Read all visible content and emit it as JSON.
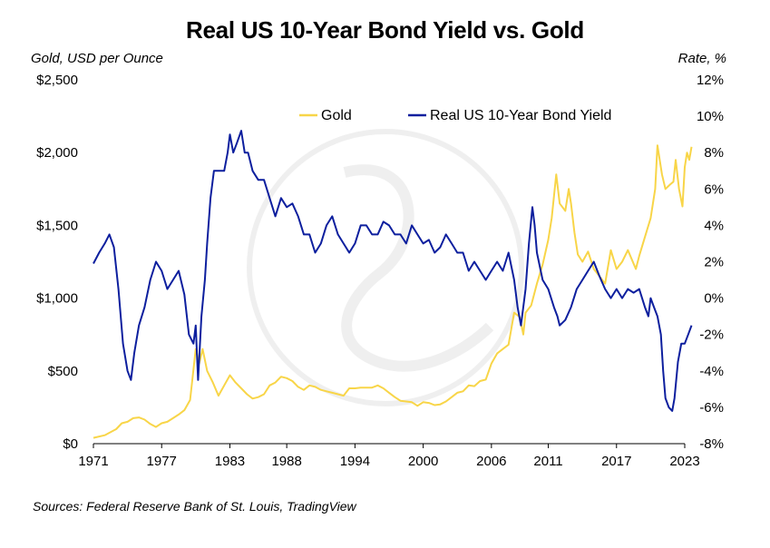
{
  "chart_data": {
    "type": "line",
    "title": "Real US 10-Year Bond Yield vs. Gold",
    "ylabel_left": "Gold, USD per Ounce",
    "ylabel_right": "Rate, %",
    "source": "Sources: Federal Reserve Bank of St. Louis, TradingView",
    "x_ticks": [
      {
        "label": "1971",
        "year": 1971
      },
      {
        "label": "1977",
        "year": 1977
      },
      {
        "label": "1983",
        "year": 1983
      },
      {
        "label": "1988",
        "year": 1988
      },
      {
        "label": "1994",
        "year": 1994
      },
      {
        "label": "2000",
        "year": 2000
      },
      {
        "label": "2006",
        "year": 2006
      },
      {
        "label": "2011",
        "year": 2011
      },
      {
        "label": "2017",
        "year": 2017
      },
      {
        "label": "2023",
        "year": 2023
      }
    ],
    "xlim": [
      1971,
      2023
    ],
    "ylim_left": [
      0,
      2500
    ],
    "ylim_right": [
      -8,
      12
    ],
    "y_left_ticks": [
      {
        "label": "$0",
        "value": 0
      },
      {
        "label": "$500",
        "value": 500
      },
      {
        "label": "$1,000",
        "value": 1000
      },
      {
        "label": "$1,500",
        "value": 1500
      },
      {
        "label": "$2,000",
        "value": 2000
      },
      {
        "label": "$2,500",
        "value": 2500
      }
    ],
    "y_right_ticks": [
      {
        "label": "-8%",
        "value": -8
      },
      {
        "label": "-6%",
        "value": -6
      },
      {
        "label": "-4%",
        "value": -4
      },
      {
        "label": "-2%",
        "value": -2
      },
      {
        "label": "0%",
        "value": 0
      },
      {
        "label": "2%",
        "value": 2
      },
      {
        "label": "4%",
        "value": 4
      },
      {
        "label": "6%",
        "value": 6
      },
      {
        "label": "8%",
        "value": 8
      },
      {
        "label": "10%",
        "value": 10
      },
      {
        "label": "12%",
        "value": 12
      }
    ],
    "legend_position": "top-right",
    "grid": false,
    "series": [
      {
        "name": "Gold",
        "axis": "left",
        "color": "#F8D548",
        "points": [
          [
            1971.0,
            40
          ],
          [
            1972.0,
            58
          ],
          [
            1973.0,
            100
          ],
          [
            1973.5,
            140
          ],
          [
            1974.0,
            150
          ],
          [
            1974.5,
            175
          ],
          [
            1975.0,
            180
          ],
          [
            1975.5,
            165
          ],
          [
            1976.0,
            135
          ],
          [
            1976.5,
            115
          ],
          [
            1977.0,
            140
          ],
          [
            1977.5,
            150
          ],
          [
            1978.0,
            175
          ],
          [
            1978.5,
            200
          ],
          [
            1979.0,
            230
          ],
          [
            1979.5,
            300
          ],
          [
            1980.0,
            650
          ],
          [
            1980.3,
            550
          ],
          [
            1980.6,
            650
          ],
          [
            1981.0,
            500
          ],
          [
            1981.5,
            420
          ],
          [
            1982.0,
            330
          ],
          [
            1982.5,
            400
          ],
          [
            1983.0,
            470
          ],
          [
            1983.5,
            420
          ],
          [
            1984.0,
            380
          ],
          [
            1984.5,
            340
          ],
          [
            1985.0,
            310
          ],
          [
            1985.5,
            320
          ],
          [
            1986.0,
            340
          ],
          [
            1986.5,
            400
          ],
          [
            1987.0,
            420
          ],
          [
            1987.5,
            460
          ],
          [
            1988.0,
            450
          ],
          [
            1988.5,
            430
          ],
          [
            1989.0,
            390
          ],
          [
            1989.5,
            370
          ],
          [
            1990.0,
            400
          ],
          [
            1990.5,
            390
          ],
          [
            1991.0,
            370
          ],
          [
            1991.5,
            360
          ],
          [
            1992.0,
            350
          ],
          [
            1992.5,
            340
          ],
          [
            1993.0,
            330
          ],
          [
            1993.5,
            380
          ],
          [
            1994.0,
            380
          ],
          [
            1994.5,
            385
          ],
          [
            1995.0,
            385
          ],
          [
            1995.5,
            385
          ],
          [
            1996.0,
            400
          ],
          [
            1996.5,
            380
          ],
          [
            1997.0,
            350
          ],
          [
            1997.5,
            320
          ],
          [
            1998.0,
            295
          ],
          [
            1998.5,
            290
          ],
          [
            1999.0,
            285
          ],
          [
            1999.5,
            260
          ],
          [
            2000.0,
            285
          ],
          [
            2000.5,
            280
          ],
          [
            2001.0,
            265
          ],
          [
            2001.5,
            270
          ],
          [
            2002.0,
            290
          ],
          [
            2002.5,
            320
          ],
          [
            2003.0,
            350
          ],
          [
            2003.5,
            360
          ],
          [
            2004.0,
            400
          ],
          [
            2004.5,
            395
          ],
          [
            2005.0,
            430
          ],
          [
            2005.5,
            440
          ],
          [
            2006.0,
            550
          ],
          [
            2006.5,
            620
          ],
          [
            2007.0,
            650
          ],
          [
            2007.5,
            680
          ],
          [
            2008.0,
            900
          ],
          [
            2008.5,
            870
          ],
          [
            2008.8,
            750
          ],
          [
            2009.0,
            900
          ],
          [
            2009.5,
            950
          ],
          [
            2010.0,
            1100
          ],
          [
            2010.5,
            1230
          ],
          [
            2011.0,
            1400
          ],
          [
            2011.3,
            1550
          ],
          [
            2011.7,
            1850
          ],
          [
            2012.0,
            1650
          ],
          [
            2012.5,
            1600
          ],
          [
            2012.8,
            1750
          ],
          [
            2013.0,
            1650
          ],
          [
            2013.3,
            1450
          ],
          [
            2013.6,
            1300
          ],
          [
            2014.0,
            1250
          ],
          [
            2014.5,
            1320
          ],
          [
            2015.0,
            1200
          ],
          [
            2015.5,
            1150
          ],
          [
            2016.0,
            1100
          ],
          [
            2016.5,
            1330
          ],
          [
            2017.0,
            1200
          ],
          [
            2017.5,
            1250
          ],
          [
            2018.0,
            1330
          ],
          [
            2018.7,
            1200
          ],
          [
            2019.0,
            1290
          ],
          [
            2019.5,
            1420
          ],
          [
            2020.0,
            1550
          ],
          [
            2020.4,
            1750
          ],
          [
            2020.6,
            2050
          ],
          [
            2021.0,
            1850
          ],
          [
            2021.3,
            1750
          ],
          [
            2021.7,
            1780
          ],
          [
            2022.0,
            1800
          ],
          [
            2022.2,
            1950
          ],
          [
            2022.5,
            1750
          ],
          [
            2022.8,
            1630
          ],
          [
            2023.0,
            1900
          ],
          [
            2023.2,
            2000
          ],
          [
            2023.4,
            1950
          ],
          [
            2023.6,
            2040
          ]
        ]
      },
      {
        "name": "Real US 10-Year Bond Yield",
        "axis": "right",
        "color": "#0D1F9E",
        "points": [
          [
            1971.0,
            1.9
          ],
          [
            1971.5,
            2.5
          ],
          [
            1972.0,
            3.0
          ],
          [
            1972.4,
            3.5
          ],
          [
            1972.8,
            2.8
          ],
          [
            1973.2,
            0.5
          ],
          [
            1973.6,
            -2.5
          ],
          [
            1974.0,
            -4.0
          ],
          [
            1974.3,
            -4.5
          ],
          [
            1974.6,
            -3.0
          ],
          [
            1975.0,
            -1.5
          ],
          [
            1975.5,
            -0.5
          ],
          [
            1976.0,
            1.0
          ],
          [
            1976.5,
            2.0
          ],
          [
            1977.0,
            1.5
          ],
          [
            1977.5,
            0.5
          ],
          [
            1978.0,
            1.0
          ],
          [
            1978.5,
            1.5
          ],
          [
            1979.0,
            0.2
          ],
          [
            1979.4,
            -2.0
          ],
          [
            1979.8,
            -2.5
          ],
          [
            1980.0,
            -1.5
          ],
          [
            1980.2,
            -4.5
          ],
          [
            1980.5,
            -1.0
          ],
          [
            1980.8,
            1.0
          ],
          [
            1981.0,
            3.0
          ],
          [
            1981.3,
            5.5
          ],
          [
            1981.6,
            7.0
          ],
          [
            1982.0,
            7.0
          ],
          [
            1982.5,
            7.0
          ],
          [
            1982.8,
            8.0
          ],
          [
            1983.0,
            9.0
          ],
          [
            1983.3,
            8.0
          ],
          [
            1983.6,
            8.5
          ],
          [
            1984.0,
            9.2
          ],
          [
            1984.3,
            8.0
          ],
          [
            1984.6,
            8.0
          ],
          [
            1985.0,
            7.0
          ],
          [
            1985.5,
            6.5
          ],
          [
            1986.0,
            6.5
          ],
          [
            1986.5,
            5.5
          ],
          [
            1987.0,
            4.5
          ],
          [
            1987.5,
            5.5
          ],
          [
            1988.0,
            5.0
          ],
          [
            1988.5,
            5.2
          ],
          [
            1989.0,
            4.5
          ],
          [
            1989.5,
            3.5
          ],
          [
            1990.0,
            3.5
          ],
          [
            1990.5,
            2.5
          ],
          [
            1991.0,
            3.0
          ],
          [
            1991.5,
            4.0
          ],
          [
            1992.0,
            4.5
          ],
          [
            1992.5,
            3.5
          ],
          [
            1993.0,
            3.0
          ],
          [
            1993.5,
            2.5
          ],
          [
            1994.0,
            3.0
          ],
          [
            1994.5,
            4.0
          ],
          [
            1995.0,
            4.0
          ],
          [
            1995.5,
            3.5
          ],
          [
            1996.0,
            3.5
          ],
          [
            1996.5,
            4.2
          ],
          [
            1997.0,
            4.0
          ],
          [
            1997.5,
            3.5
          ],
          [
            1998.0,
            3.5
          ],
          [
            1998.5,
            3.0
          ],
          [
            1999.0,
            4.0
          ],
          [
            1999.5,
            3.5
          ],
          [
            2000.0,
            3.0
          ],
          [
            2000.5,
            3.2
          ],
          [
            2001.0,
            2.5
          ],
          [
            2001.5,
            2.8
          ],
          [
            2002.0,
            3.5
          ],
          [
            2002.5,
            3.0
          ],
          [
            2003.0,
            2.5
          ],
          [
            2003.5,
            2.5
          ],
          [
            2004.0,
            1.5
          ],
          [
            2004.5,
            2.0
          ],
          [
            2005.0,
            1.5
          ],
          [
            2005.5,
            1.0
          ],
          [
            2006.0,
            1.5
          ],
          [
            2006.5,
            2.0
          ],
          [
            2007.0,
            1.5
          ],
          [
            2007.5,
            2.5
          ],
          [
            2008.0,
            1.0
          ],
          [
            2008.3,
            -0.5
          ],
          [
            2008.6,
            -1.5
          ],
          [
            2009.0,
            0.5
          ],
          [
            2009.3,
            3.0
          ],
          [
            2009.6,
            5.0
          ],
          [
            2009.8,
            4.0
          ],
          [
            2010.0,
            2.5
          ],
          [
            2010.5,
            1.0
          ],
          [
            2011.0,
            0.5
          ],
          [
            2011.5,
            -0.5
          ],
          [
            2011.8,
            -1.0
          ],
          [
            2012.0,
            -1.5
          ],
          [
            2012.5,
            -1.2
          ],
          [
            2013.0,
            -0.5
          ],
          [
            2013.5,
            0.5
          ],
          [
            2014.0,
            1.0
          ],
          [
            2014.5,
            1.5
          ],
          [
            2015.0,
            2.0
          ],
          [
            2015.5,
            1.2
          ],
          [
            2016.0,
            0.5
          ],
          [
            2016.5,
            0.0
          ],
          [
            2017.0,
            0.5
          ],
          [
            2017.5,
            0.0
          ],
          [
            2018.0,
            0.5
          ],
          [
            2018.5,
            0.3
          ],
          [
            2019.0,
            0.5
          ],
          [
            2019.5,
            -0.5
          ],
          [
            2019.8,
            -1.0
          ],
          [
            2020.0,
            0.0
          ],
          [
            2020.3,
            -0.5
          ],
          [
            2020.6,
            -1.0
          ],
          [
            2020.9,
            -2.0
          ],
          [
            2021.1,
            -4.0
          ],
          [
            2021.3,
            -5.5
          ],
          [
            2021.6,
            -6.0
          ],
          [
            2021.9,
            -6.2
          ],
          [
            2022.1,
            -5.5
          ],
          [
            2022.4,
            -3.5
          ],
          [
            2022.7,
            -2.5
          ],
          [
            2023.0,
            -2.5
          ],
          [
            2023.3,
            -2.0
          ],
          [
            2023.6,
            -1.5
          ]
        ]
      }
    ]
  }
}
